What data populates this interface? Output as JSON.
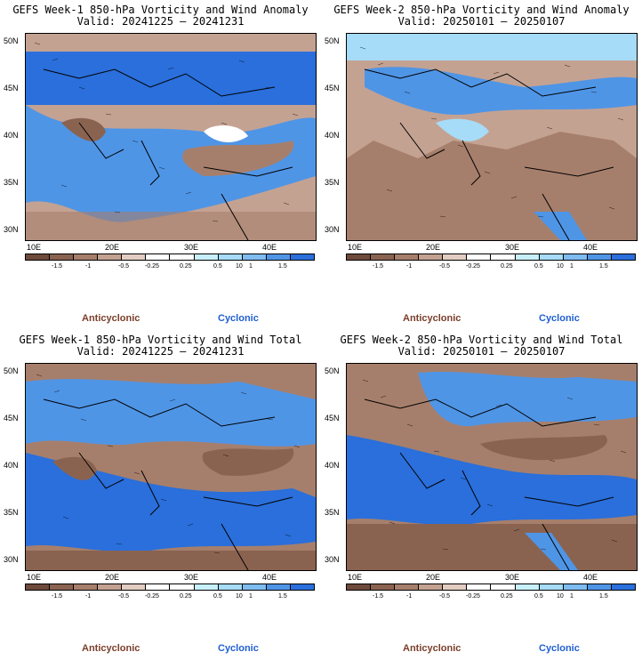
{
  "panels": [
    {
      "title": "GEFS Week-1 850-hPa Vorticity and Wind Anomaly",
      "valid": "Valid: 20241225 – 20241231"
    },
    {
      "title": "GEFS Week-2 850-hPa Vorticity and Wind Anomaly",
      "valid": "Valid: 20250101 – 20250107"
    },
    {
      "title": "GEFS Week-1 850-hPa Vorticity and Wind Total",
      "valid": "Valid: 20241225 – 20241231"
    },
    {
      "title": "GEFS Week-2 850-hPa Vorticity and Wind Total",
      "valid": "Valid: 20250101 – 20250107"
    }
  ],
  "lat_labels": [
    "50N",
    "45N",
    "40N",
    "35N",
    "30N"
  ],
  "lon_labels": [
    "10E",
    "20E",
    "30E",
    "40E"
  ],
  "colorbar": {
    "ticks": [
      "-1.5",
      "-1",
      "-0.5",
      "-0.25",
      "0.25",
      "0.5",
      "1",
      "1.5"
    ],
    "unit_label": "10",
    "colors": [
      "#6e4a3c",
      "#8a6350",
      "#a67f6c",
      "#c4a292",
      "#e3cdc2",
      "#ffffff",
      "#ffffff",
      "#c8f0fa",
      "#a6dcf7",
      "#7fbcf0",
      "#4f95e6",
      "#2a6fdb"
    ]
  },
  "legend": {
    "anticyclonic": "Anticyclonic",
    "cyclonic": "Cyclonic",
    "anticyclonic_color": "#7a3e2a",
    "cyclonic_color": "#1f5fd1"
  },
  "map_colors": {
    "brown": "#a67f6c",
    "dark_brown": "#8a6350",
    "light_brown": "#c4a292",
    "blue": "#4f95e6",
    "dark_blue": "#2a6fdb",
    "light_blue": "#a6dcf7"
  }
}
